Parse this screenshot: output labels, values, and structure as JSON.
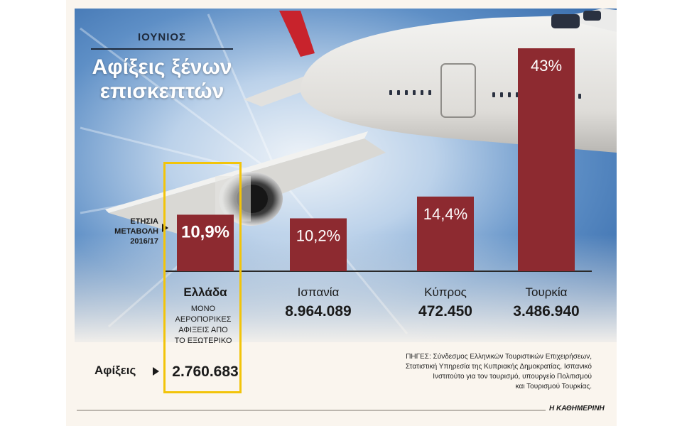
{
  "header": {
    "month": "ΙΟΥΝΙΟΣ",
    "title_line1": "Αφίξεις ξένων",
    "title_line2": "επισκεπτών"
  },
  "labels": {
    "change_line1": "ΕΤΗΣΙΑ",
    "change_line2": "ΜΕΤΑΒΟΛΗ",
    "change_line3": "2016/17",
    "arrivals": "Αφίξεις",
    "greece_note": [
      "ΜΟΝΟ",
      "ΑΕΡΟΠΟΡΙΚΕΣ",
      "ΑΦΙΞΕΙΣ ΑΠΟ",
      "ΤΟ ΕΞΩΤΕΡΙΚΟ"
    ]
  },
  "source": {
    "lines": [
      "ΠΗΓΕΣ: Σύνδεσμος Ελληνικών Τουριστικών Επιχειρήσεων,",
      "Στατιστική Υπηρεσία της Κυπριακής Δημοκρατίας, Ισπανικό",
      "Ινστιτούτο για τον τουρισμό, υπουργείο Πολιτισμού",
      "και Τουρισμού Τουρκίας."
    ]
  },
  "footer": {
    "brand": "Η ΚΑΘΗΜΕΡΙΝΗ"
  },
  "colors": {
    "bar": "#8d2a30",
    "highlight": "#f2c40a",
    "text": "#1a1a1a",
    "sky": "#4f86c4"
  },
  "chart_data": {
    "type": "bar",
    "categories": [
      "Ελλάδα",
      "Ισπανία",
      "Κύπρος",
      "Τουρκία"
    ],
    "values": [
      10.9,
      10.2,
      14.4,
      43
    ],
    "value_labels": [
      "10,9%",
      "10,2%",
      "14,4%",
      "43%"
    ],
    "arrivals": [
      "2.760.683",
      "8.964.089",
      "472.450",
      "3.486.940"
    ],
    "highlight_category": "Ελλάδα",
    "ylim": [
      0,
      43
    ]
  }
}
